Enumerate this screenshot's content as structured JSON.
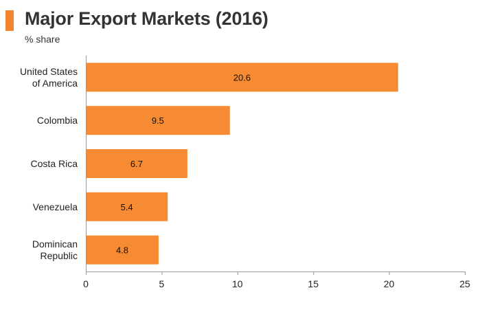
{
  "header": {
    "title": "Major Export Markets (2016)",
    "subtitle": "% share"
  },
  "colors": {
    "accent": "#F4842E",
    "bar": "#F68B33",
    "axis": "#9A9A9A"
  },
  "chart_data": {
    "type": "bar",
    "orientation": "horizontal",
    "title": "Major Export Markets (2016)",
    "subtitle": "% share",
    "xlabel": "",
    "ylabel": "",
    "categories": [
      [
        "United States",
        "of America"
      ],
      [
        "Colombia"
      ],
      [
        "Costa Rica"
      ],
      [
        "Venezuela"
      ],
      [
        "Dominican",
        "Republic"
      ]
    ],
    "values": [
      20.6,
      9.5,
      6.7,
      5.4,
      4.8
    ],
    "value_labels": [
      "20.6",
      "9.5",
      "6.7",
      "5.4",
      "4.8"
    ],
    "xlim": [
      0,
      25
    ],
    "xticks": [
      "0",
      "5",
      "10",
      "15",
      "20",
      "25"
    ],
    "grid": false,
    "legend": "none"
  }
}
